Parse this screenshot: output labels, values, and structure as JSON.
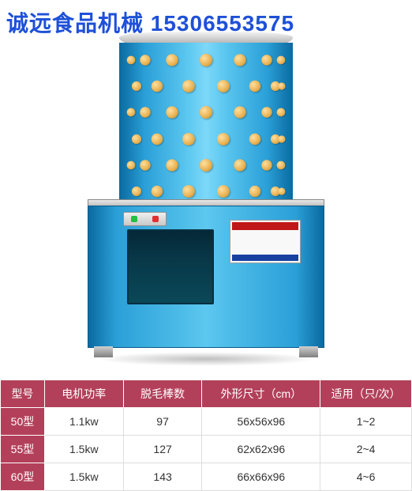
{
  "watermark": {
    "text": "诚远食品机械 15306553575",
    "color": "#1e50d8",
    "fontsize": 28
  },
  "product": {
    "drum_color_light": "#5dc8f0",
    "drum_color_dark": "#0a6aa0",
    "base_color_light": "#4dbce8",
    "base_color_dark": "#0a6aa0",
    "finger_color": "#e8b050",
    "lid_color": "#c0c0c0",
    "finger_rows": 6,
    "fingers_per_row": 7
  },
  "table": {
    "header_bg": "#b3405a",
    "model_col_bg": "#b3405a",
    "header_text_color": "#ffffff",
    "cell_text_color": "#333333",
    "columns": [
      "型号",
      "电机功率",
      "脱毛棒数",
      "外形尺寸（cm）",
      "适用（只/次）"
    ],
    "rows": [
      {
        "model": "50型",
        "power": "1.1kw",
        "fingers": "97",
        "size": "56x56x96",
        "capacity": "1~2"
      },
      {
        "model": "55型",
        "power": "1.5kw",
        "fingers": "127",
        "size": "62x62x96",
        "capacity": "2~4"
      },
      {
        "model": "60型",
        "power": "1.5kw",
        "fingers": "143",
        "size": "66x66x96",
        "capacity": "4~6"
      }
    ]
  }
}
